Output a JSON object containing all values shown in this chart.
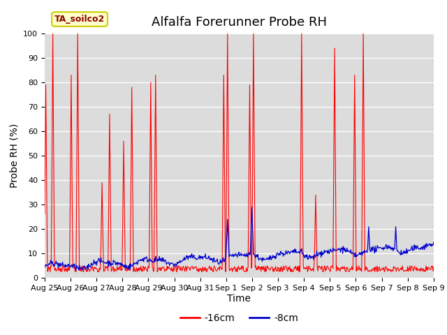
{
  "title": "Alfalfa Forerunner Probe RH",
  "ylabel": "Probe RH (%)",
  "xlabel": "Time",
  "ylim": [
    0,
    100
  ],
  "yticks": [
    0,
    10,
    20,
    30,
    40,
    50,
    60,
    70,
    80,
    90,
    100
  ],
  "xtick_labels": [
    "Aug 25",
    "Aug 26",
    "Aug 27",
    "Aug 28",
    "Aug 29",
    "Aug 30",
    "Aug 31",
    "Sep 1",
    "Sep 2",
    "Sep 3",
    "Sep 4",
    "Sep 5",
    "Sep 6",
    "Sep 7",
    "Sep 8",
    "Sep 9"
  ],
  "legend_label_red": "-16cm",
  "legend_label_blue": "-8cm",
  "legend_box_label": "TA_soilco2",
  "bg_color": "#dcdcdc",
  "red_color": "#ff0000",
  "blue_color": "#0000cc",
  "title_fontsize": 13,
  "axis_fontsize": 10,
  "tick_fontsize": 8
}
